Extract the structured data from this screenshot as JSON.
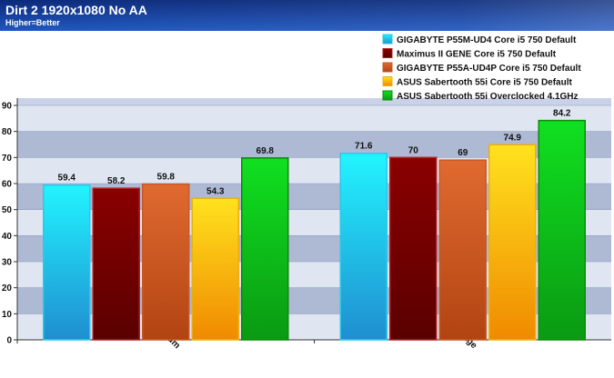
{
  "chart_data": {
    "type": "bar",
    "title": "Dirt 2 1920x1080 No AA",
    "subtitle": "Higher=Better",
    "xlabel": "",
    "ylabel": "",
    "ylim": [
      0,
      90
    ],
    "yticks": [
      0,
      10,
      20,
      30,
      40,
      50,
      60,
      70,
      80,
      90
    ],
    "grid": true,
    "legend_position": "top-right",
    "categories": [
      "Minimum",
      "Average"
    ],
    "series": [
      {
        "name": "GIGABYTE P55M-UD4 Core i5 750 Default",
        "values": [
          59.4,
          71.6
        ],
        "color_top": "#22f4ff",
        "color_bottom": "#1f8ed0",
        "border": "#2bc8e8"
      },
      {
        "name": "Maximus II GENE Core i5 750 Default",
        "values": [
          58.2,
          70
        ],
        "color_top": "#8a0000",
        "color_bottom": "#5a0000",
        "border": "#b02020"
      },
      {
        "name": "GIGABYTE P55A-UD4P Core i5 750 Default",
        "values": [
          59.8,
          69
        ],
        "color_top": "#e06a30",
        "color_bottom": "#b24412",
        "border": "#c85a28"
      },
      {
        "name": "ASUS Sabertooth 55i Core i5 750 Default",
        "values": [
          54.3,
          74.9
        ],
        "color_top": "#ffe21e",
        "color_bottom": "#f08a00",
        "border": "#e8b010"
      },
      {
        "name": "ASUS Sabertooth 55i Overclocked 4.1GHz",
        "values": [
          69.8,
          84.2
        ],
        "color_top": "#10e020",
        "color_bottom": "#0a9a12",
        "border": "#0a8a0a"
      }
    ],
    "data_labels": [
      [
        "59.4",
        "71.6"
      ],
      [
        "58.2",
        "70"
      ],
      [
        "59.8",
        "69"
      ],
      [
        "54.3",
        "74.9"
      ],
      [
        "69.8",
        "84.2"
      ]
    ]
  },
  "colors": {
    "header_top": "#0a2a7a",
    "header_bottom": "#1a4fb8",
    "plot_band_light": "#dfe6f2",
    "plot_band_dark": "#aeb9d4"
  }
}
